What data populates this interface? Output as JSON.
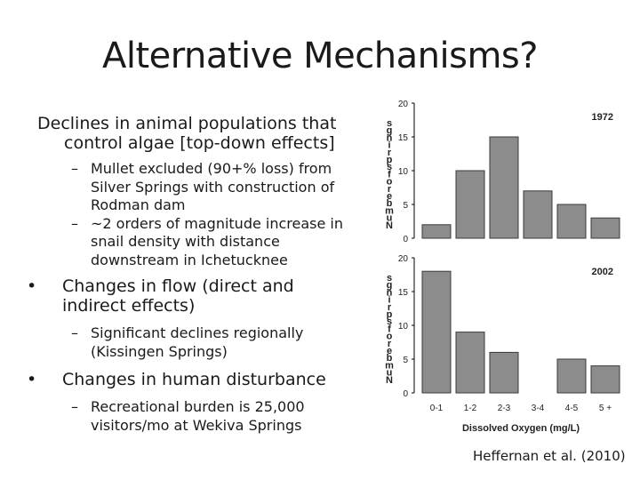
{
  "slide": {
    "title": "Alternative Mechanisms?",
    "bullets": [
      {
        "text": "Declines in animal populations that control algae [top-down effects]",
        "subs": [
          "Mullet excluded (90+% loss) from Silver Springs with construction of Rodman dam",
          "~2 orders of magnitude increase in snail density with distance downstream in Ichetucknee"
        ]
      },
      {
        "text": "Changes in flow (direct and indirect effects)",
        "subs": [
          "Significant declines regionally (Kissingen Springs)"
        ]
      },
      {
        "text": "Changes in human disturbance",
        "subs": [
          "Recreational burden is 25,000 visitors/mo at Wekiva Springs"
        ]
      }
    ],
    "citation": "Heffernan et al. (2010)"
  },
  "chart_data": [
    {
      "type": "bar",
      "title": "1972",
      "categories": [
        "0-1",
        "1-2",
        "2-3",
        "3-4",
        "4-5",
        "5 +"
      ],
      "values": [
        2,
        10,
        15,
        7,
        5,
        3
      ],
      "ylim": [
        0,
        20
      ],
      "yticks": [
        "0",
        "5",
        "10",
        "15",
        "20"
      ],
      "ylabel": "Number of springs",
      "xlabel": ""
    },
    {
      "type": "bar",
      "title": "2002",
      "categories": [
        "0-1",
        "1-2",
        "2-3",
        "3-4",
        "4-5",
        "5 +"
      ],
      "values": [
        18,
        9,
        6,
        0,
        5,
        4
      ],
      "ylim": [
        0,
        20
      ],
      "yticks": [
        "0",
        "5",
        "10",
        "15",
        "20"
      ],
      "ylabel": "Number of springs",
      "xlabel": "Dissolved Oxygen (mg/L)"
    }
  ]
}
